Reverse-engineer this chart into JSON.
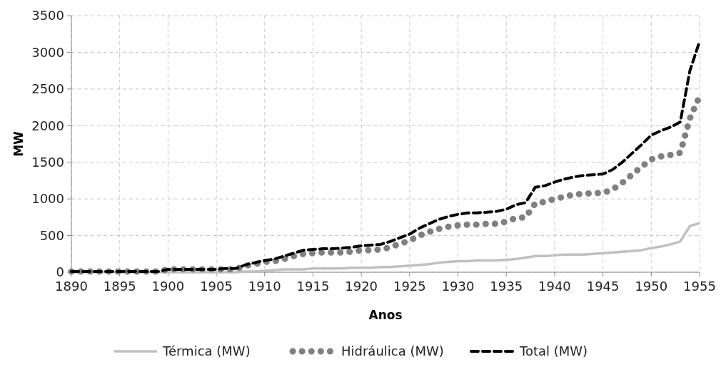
{
  "chart_data": {
    "type": "line",
    "xlabel": "Anos",
    "ylabel": "MW",
    "x": [
      1890,
      1891,
      1892,
      1893,
      1894,
      1895,
      1896,
      1897,
      1898,
      1899,
      1900,
      1901,
      1902,
      1903,
      1904,
      1905,
      1906,
      1907,
      1908,
      1909,
      1910,
      1911,
      1912,
      1913,
      1914,
      1915,
      1916,
      1917,
      1918,
      1919,
      1920,
      1921,
      1922,
      1923,
      1924,
      1925,
      1926,
      1927,
      1928,
      1929,
      1930,
      1931,
      1932,
      1933,
      1934,
      1935,
      1936,
      1937,
      1938,
      1939,
      1940,
      1941,
      1942,
      1943,
      1944,
      1945,
      1946,
      1947,
      1948,
      1949,
      1950,
      1951,
      1952,
      1953,
      1954,
      1955
    ],
    "series": [
      {
        "name": "Térmica (MW)",
        "color": "#c0c0c0",
        "line_style": "solid",
        "values": [
          0,
          0,
          0,
          0,
          0,
          0,
          0,
          0,
          0,
          0,
          0,
          0,
          0,
          0,
          0,
          0,
          0,
          0,
          10,
          10,
          20,
          30,
          40,
          40,
          40,
          50,
          50,
          50,
          50,
          60,
          60,
          60,
          70,
          70,
          80,
          90,
          100,
          110,
          130,
          140,
          150,
          150,
          160,
          160,
          160,
          170,
          180,
          200,
          220,
          220,
          230,
          240,
          240,
          240,
          250,
          260,
          270,
          280,
          290,
          300,
          330,
          350,
          380,
          420,
          630,
          670
        ]
      },
      {
        "name": "Hidráulica (MW)",
        "color": "#808080",
        "line_style": "dotted",
        "values": [
          10,
          10,
          10,
          10,
          10,
          10,
          10,
          10,
          10,
          10,
          40,
          40,
          40,
          40,
          40,
          40,
          40,
          40,
          90,
          110,
          140,
          150,
          180,
          220,
          250,
          260,
          270,
          270,
          270,
          280,
          300,
          300,
          310,
          340,
          390,
          430,
          500,
          550,
          590,
          620,
          640,
          650,
          650,
          660,
          660,
          690,
          740,
          750,
          940,
          960,
          1000,
          1030,
          1060,
          1070,
          1080,
          1080,
          1130,
          1220,
          1330,
          1440,
          1540,
          1580,
          1600,
          1630,
          2100,
          2400
        ]
      },
      {
        "name": "Total (MW)",
        "color": "#000000",
        "line_style": "dashed",
        "values": [
          10,
          10,
          10,
          10,
          10,
          10,
          10,
          10,
          10,
          10,
          40,
          40,
          40,
          40,
          40,
          40,
          50,
          50,
          100,
          130,
          160,
          180,
          220,
          260,
          300,
          310,
          320,
          320,
          330,
          340,
          360,
          370,
          380,
          420,
          470,
          520,
          600,
          660,
          720,
          760,
          790,
          810,
          810,
          820,
          830,
          860,
          920,
          950,
          1160,
          1180,
          1230,
          1270,
          1300,
          1320,
          1330,
          1340,
          1400,
          1500,
          1620,
          1740,
          1870,
          1930,
          1980,
          2050,
          2750,
          3150
        ]
      }
    ],
    "xlim": [
      1890,
      1955
    ],
    "xticks": [
      1890,
      1895,
      1900,
      1905,
      1910,
      1915,
      1920,
      1925,
      1930,
      1935,
      1940,
      1945,
      1950,
      1955
    ],
    "ylim": [
      0,
      3500
    ],
    "yticks": [
      0,
      500,
      1000,
      1500,
      2000,
      2500,
      3000,
      3500
    ],
    "grid": true,
    "legend": "bottom"
  }
}
